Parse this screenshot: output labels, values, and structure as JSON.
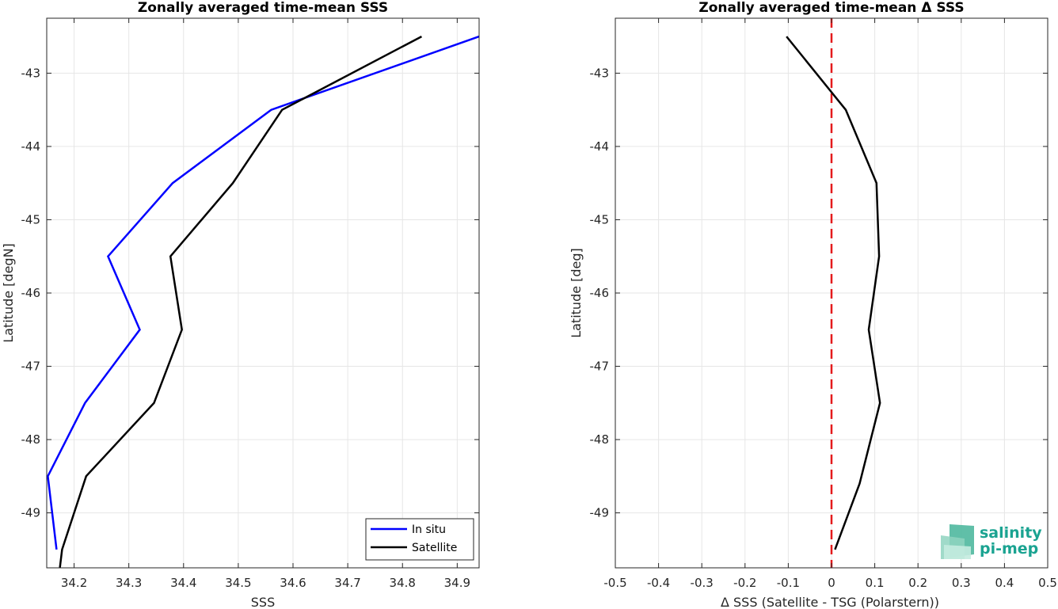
{
  "chart_data": [
    {
      "type": "line",
      "title": "Zonally averaged time-mean SSS",
      "xlabel": "SSS",
      "ylabel": "Latitude [degN]",
      "xlim": [
        34.15,
        34.94
      ],
      "ylim": [
        -49.75,
        -42.25
      ],
      "xticks": [
        34.2,
        34.3,
        34.4,
        34.5,
        34.6,
        34.7,
        34.8,
        34.9
      ],
      "xtick_labels": [
        "34.2",
        "34.3",
        "34.4",
        "34.5",
        "34.6",
        "34.7",
        "34.8",
        "34.9"
      ],
      "yticks": [
        -43,
        -44,
        -45,
        -46,
        -47,
        -48,
        -49
      ],
      "ytick_labels": [
        "-43",
        "-44",
        "-45",
        "-46",
        "-47",
        "-48",
        "-49"
      ],
      "grid": true,
      "legend": "bottom-right",
      "series": [
        {
          "name": "In situ",
          "color": "#0000ff",
          "points": [
            [
              34.94,
              -42.5
            ],
            [
              34.56,
              -43.5
            ],
            [
              34.38,
              -44.5
            ],
            [
              34.262,
              -45.5
            ],
            [
              34.32,
              -46.5
            ],
            [
              34.22,
              -47.5
            ],
            [
              34.152,
              -48.5
            ],
            [
              34.168,
              -49.5
            ]
          ]
        },
        {
          "name": "Satellite",
          "color": "#000000",
          "points": [
            [
              34.835,
              -42.5
            ],
            [
              34.58,
              -43.5
            ],
            [
              34.49,
              -44.5
            ],
            [
              34.376,
              -45.5
            ],
            [
              34.397,
              -46.5
            ],
            [
              34.346,
              -47.5
            ],
            [
              34.222,
              -48.5
            ],
            [
              34.178,
              -49.5
            ],
            [
              34.174,
              -49.75
            ]
          ]
        }
      ]
    },
    {
      "type": "line",
      "title": "Zonally averaged time-mean Δ SSS",
      "xlabel": "Δ SSS (Satellite - TSG (Polarstern))",
      "ylabel": "Latitude [deg]",
      "xlim": [
        -0.5,
        0.5
      ],
      "ylim": [
        -49.75,
        -42.25
      ],
      "xticks": [
        -0.5,
        -0.4,
        -0.3,
        -0.2,
        -0.1,
        0,
        0.1,
        0.2,
        0.3,
        0.4,
        0.5
      ],
      "xtick_labels": [
        "-0.5",
        "-0.4",
        "-0.3",
        "-0.2",
        "-0.1",
        "0",
        "0.1",
        "0.2",
        "0.3",
        "0.4",
        "0.5"
      ],
      "yticks": [
        -43,
        -44,
        -45,
        -46,
        -47,
        -48,
        -49
      ],
      "ytick_labels": [
        "-43",
        "-44",
        "-45",
        "-46",
        "-47",
        "-48",
        "-49"
      ],
      "grid": true,
      "reference_line": {
        "x": 0,
        "color": "#e41a1c",
        "style": "dashed"
      },
      "series": [
        {
          "color": "#000000",
          "points": [
            [
              -0.104,
              -42.5
            ],
            [
              0.033,
              -43.5
            ],
            [
              0.104,
              -44.5
            ],
            [
              0.11,
              -45.5
            ],
            [
              0.086,
              -46.5
            ],
            [
              0.112,
              -47.5
            ],
            [
              0.065,
              -48.6
            ],
            [
              0.008,
              -49.5
            ]
          ]
        }
      ]
    }
  ],
  "logo": {
    "line1": "salinity",
    "line2": "pi-mep",
    "color": "#1aa391"
  }
}
